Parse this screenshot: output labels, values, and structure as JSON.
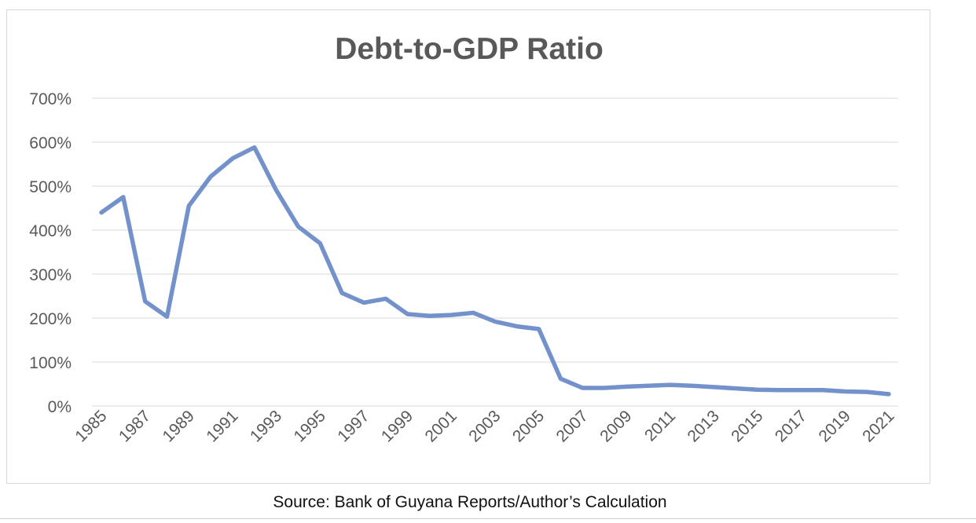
{
  "chart_data": {
    "type": "line",
    "title": "Debt-to-GDP Ratio",
    "xlabel": "",
    "ylabel": "",
    "ylim": [
      0,
      700
    ],
    "y_ticks": [
      "0%",
      "100%",
      "200%",
      "300%",
      "400%",
      "500%",
      "600%",
      "700%"
    ],
    "x_tick_labels": [
      "1985",
      "1987",
      "1989",
      "1991",
      "1993",
      "1995",
      "1997",
      "1999",
      "2001",
      "2003",
      "2005",
      "2007",
      "2009",
      "2011",
      "2013",
      "2015",
      "2017",
      "2019",
      "2021"
    ],
    "grid": true,
    "legend": "none",
    "line_color": "#7391cb",
    "x": [
      1985,
      1986,
      1987,
      1988,
      1989,
      1990,
      1991,
      1992,
      1993,
      1994,
      1995,
      1996,
      1997,
      1998,
      1999,
      2000,
      2001,
      2002,
      2003,
      2004,
      2005,
      2006,
      2007,
      2008,
      2009,
      2010,
      2011,
      2012,
      2013,
      2014,
      2015,
      2016,
      2017,
      2018,
      2019,
      2020,
      2021
    ],
    "series": [
      {
        "values": [
          440,
          475,
          238,
          203,
          455,
          522,
          563,
          588,
          490,
          408,
          370,
          257,
          235,
          244,
          209,
          205,
          207,
          212,
          192,
          181,
          175,
          62,
          41,
          41,
          44,
          46,
          48,
          46,
          43,
          40,
          37,
          36,
          36,
          36,
          33,
          32,
          27
        ]
      }
    ]
  },
  "source_note": "Source: Bank of Guyana Reports/Author’s Calculation"
}
